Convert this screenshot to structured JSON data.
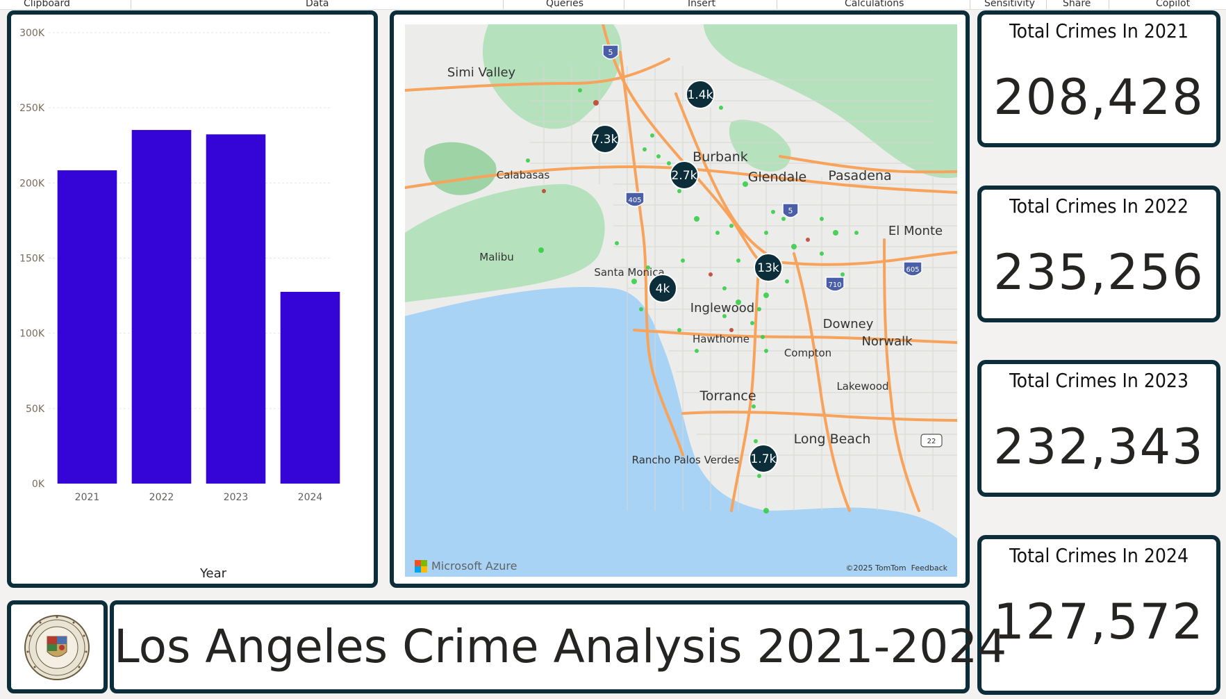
{
  "ribbon": {
    "groups": [
      "Clipboard",
      "Data",
      "Queries",
      "Insert",
      "Calculations",
      "Sensitivity",
      "Share",
      "Copilot"
    ]
  },
  "chart_data": {
    "type": "bar",
    "categories": [
      "2021",
      "2022",
      "2023",
      "2024"
    ],
    "values": [
      208428,
      235256,
      232343,
      127572
    ],
    "xlabel": "Year",
    "ylabel": "",
    "ylim": [
      0,
      300000
    ],
    "yticks": [
      "0K",
      "50K",
      "100K",
      "150K",
      "200K",
      "250K",
      "300K"
    ],
    "grid": true,
    "bar_color": "#3405d6"
  },
  "map": {
    "places": [
      "Simi Valley",
      "Burbank",
      "Glendale",
      "Pasadena",
      "Calabasas",
      "Malibu",
      "Santa Monica",
      "Inglewood",
      "Hawthorne",
      "Compton",
      "Downey",
      "Norwalk",
      "Lakewood",
      "Torrance",
      "Long Beach",
      "Rancho Palos Verdes",
      "El Monte"
    ],
    "highway_shields": [
      "5",
      "405",
      "5",
      "710",
      "605",
      "22"
    ],
    "clusters": [
      "1.4k",
      "7.3k",
      "2.7k",
      "13k",
      "4k",
      "1.7k"
    ],
    "provider": "Microsoft Azure",
    "copyright": "©2025 TomTom",
    "feedback": "Feedback",
    "colors": {
      "water": "#a9d3f5",
      "park": "#b5e2bd",
      "road": "#f7a35b",
      "cluster": "#0b2e3a",
      "point": "#2ecc40"
    }
  },
  "kpis": [
    {
      "title": "Total Crimes In 2021",
      "value": "208,428"
    },
    {
      "title": "Total Crimes In 2022",
      "value": "235,256"
    },
    {
      "title": "Total Crimes In 2023",
      "value": "232,343"
    },
    {
      "title": "Total Crimes In 2024",
      "value": "127,572"
    }
  ],
  "title": "Los Angeles Crime Analysis 2021-2024",
  "theme": {
    "panel_border": "#0b2e3a",
    "background": "#f3f2f1"
  }
}
